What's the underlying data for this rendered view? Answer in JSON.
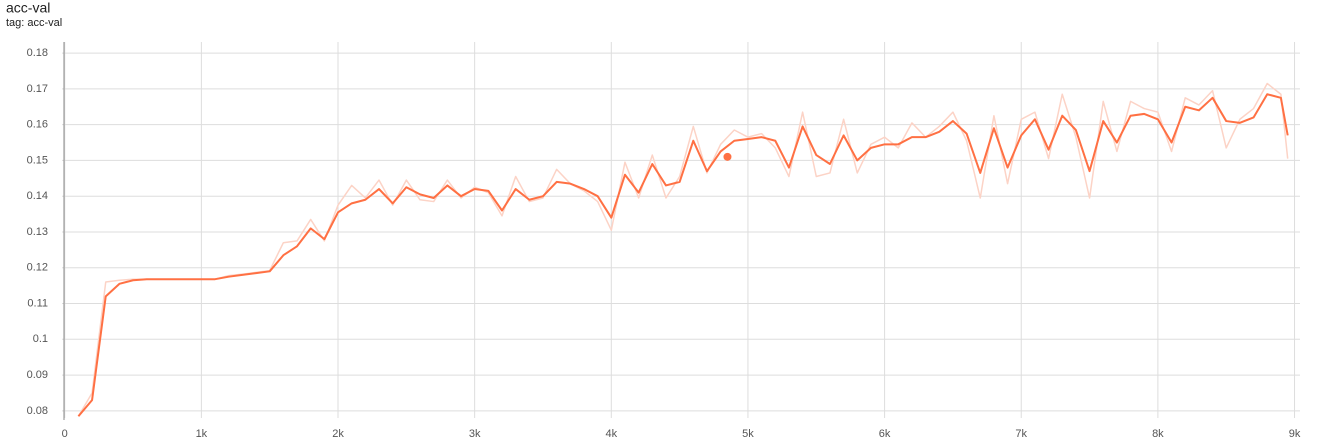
{
  "chart_data": {
    "type": "line",
    "title": "acc-val",
    "subtitle": "tag: acc-val",
    "x": [
      100,
      200,
      300,
      400,
      500,
      600,
      700,
      800,
      900,
      1000,
      1100,
      1200,
      1300,
      1400,
      1500,
      1600,
      1700,
      1800,
      1900,
      2000,
      2100,
      2200,
      2300,
      2400,
      2500,
      2600,
      2700,
      2800,
      2900,
      3000,
      3100,
      3200,
      3300,
      3400,
      3500,
      3600,
      3700,
      3800,
      3900,
      4000,
      4100,
      4200,
      4300,
      4400,
      4500,
      4600,
      4700,
      4800,
      4900,
      5000,
      5100,
      5200,
      5300,
      5400,
      5500,
      5600,
      5700,
      5800,
      5900,
      6000,
      6100,
      6200,
      6300,
      6400,
      6500,
      6600,
      6700,
      6800,
      6900,
      7000,
      7100,
      7200,
      7300,
      7400,
      7500,
      7600,
      7700,
      7800,
      7900,
      8000,
      8100,
      8200,
      8300,
      8400,
      8500,
      8600,
      8700,
      8800,
      8900,
      8950
    ],
    "series": [
      {
        "color": "#fcd3c6",
        "values": [
          0.0785,
          0.085,
          0.116,
          0.1165,
          0.1168,
          0.1168,
          0.1168,
          0.1168,
          0.1168,
          0.1168,
          0.1168,
          0.1178,
          0.1182,
          0.1187,
          0.1192,
          0.127,
          0.1275,
          0.1335,
          0.1275,
          0.1375,
          0.143,
          0.1395,
          0.1445,
          0.1375,
          0.1445,
          0.139,
          0.1385,
          0.1445,
          0.1395,
          0.1425,
          0.141,
          0.1345,
          0.1455,
          0.1385,
          0.1395,
          0.1475,
          0.1435,
          0.1415,
          0.1385,
          0.1305,
          0.1495,
          0.1395,
          0.1515,
          0.1395,
          0.1455,
          0.1595,
          0.1465,
          0.1545,
          0.1585,
          0.1565,
          0.1575,
          0.1535,
          0.1455,
          0.1635,
          0.1455,
          0.1465,
          0.1615,
          0.1465,
          0.1545,
          0.1565,
          0.1535,
          0.1605,
          0.1565,
          0.1595,
          0.1635,
          0.1555,
          0.1395,
          0.1625,
          0.1435,
          0.1615,
          0.1635,
          0.1505,
          0.1685,
          0.1565,
          0.1395,
          0.1665,
          0.1525,
          0.1665,
          0.1645,
          0.1635,
          0.1525,
          0.1675,
          0.1655,
          0.1695,
          0.1535,
          0.1615,
          0.1645,
          0.1715,
          0.1685,
          0.1505
        ]
      },
      {
        "color": "#ff7043",
        "values": [
          0.0785,
          0.083,
          0.112,
          0.1155,
          0.1165,
          0.1168,
          0.1168,
          0.1168,
          0.1168,
          0.1168,
          0.1168,
          0.1175,
          0.118,
          0.1185,
          0.119,
          0.1235,
          0.126,
          0.131,
          0.128,
          0.1355,
          0.138,
          0.139,
          0.142,
          0.138,
          0.1425,
          0.1405,
          0.1395,
          0.143,
          0.14,
          0.142,
          0.1415,
          0.136,
          0.142,
          0.139,
          0.14,
          0.144,
          0.1435,
          0.142,
          0.14,
          0.134,
          0.146,
          0.141,
          0.149,
          0.143,
          0.144,
          0.1555,
          0.147,
          0.1525,
          0.1555,
          0.156,
          0.1565,
          0.1555,
          0.148,
          0.1595,
          0.1515,
          0.149,
          0.157,
          0.15,
          0.1535,
          0.1545,
          0.1545,
          0.1565,
          0.1565,
          0.158,
          0.161,
          0.1575,
          0.1465,
          0.159,
          0.148,
          0.157,
          0.1615,
          0.153,
          0.1625,
          0.1585,
          0.147,
          0.161,
          0.155,
          0.1625,
          0.163,
          0.1615,
          0.155,
          0.165,
          0.164,
          0.1675,
          0.161,
          0.1605,
          0.162,
          0.1685,
          0.1675,
          0.157
        ]
      }
    ],
    "highlight": {
      "x": 4850,
      "y": 0.151
    },
    "xlim": [
      -20,
      9040
    ],
    "ylim": [
      0.078,
      0.1831
    ],
    "xticks": [
      0,
      {
        "value": 1000,
        "label": "1k"
      },
      {
        "value": 2000,
        "label": "2k"
      },
      {
        "value": 3000,
        "label": "3k"
      },
      {
        "value": 4000,
        "label": "4k"
      },
      {
        "value": 5000,
        "label": "5k"
      },
      {
        "value": 6000,
        "label": "6k"
      },
      {
        "value": 7000,
        "label": "7k"
      },
      {
        "value": 8000,
        "label": "8k"
      },
      {
        "value": 9000,
        "label": "9k"
      }
    ],
    "yticks": [
      0.08,
      0.09,
      0.1,
      0.11,
      0.12,
      0.13,
      0.14,
      0.15,
      0.16,
      0.17,
      0.18
    ],
    "grid": true
  }
}
